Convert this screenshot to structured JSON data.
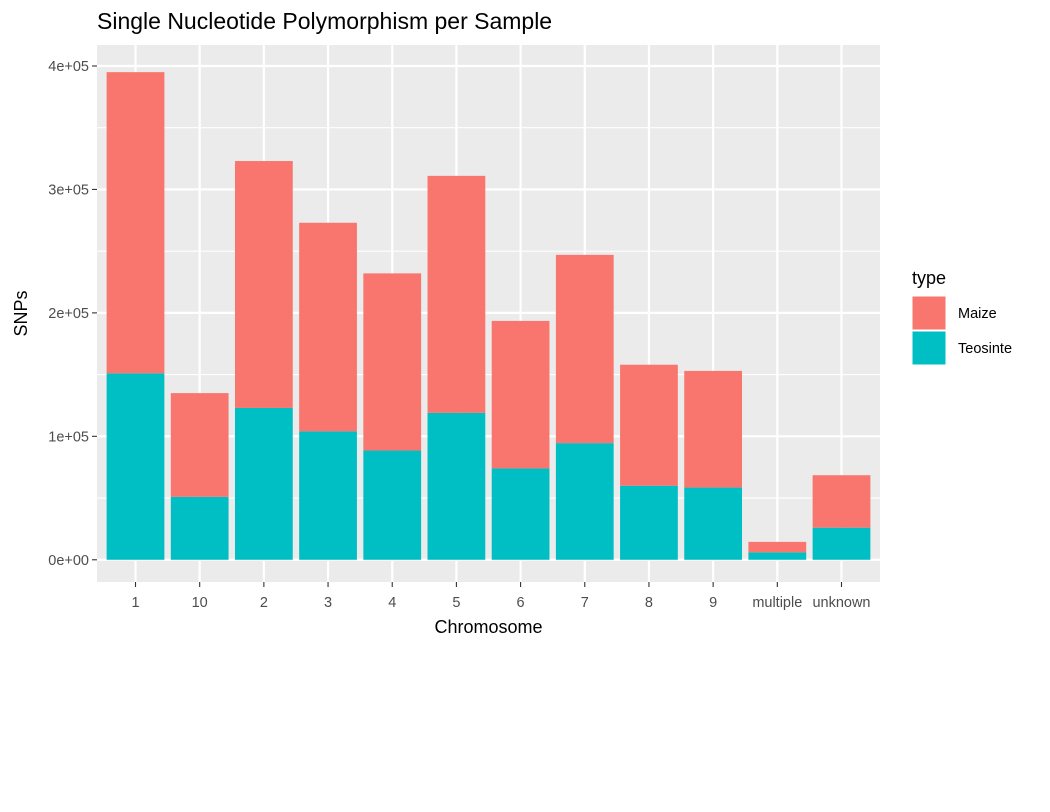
{
  "chart_data": {
    "type": "bar",
    "stacked": true,
    "title": "Single Nucleotide Polymorphism per Sample",
    "xlabel": "Chromosome",
    "ylabel": "SNPs",
    "categories": [
      "1",
      "10",
      "2",
      "3",
      "4",
      "5",
      "6",
      "7",
      "8",
      "9",
      "multiple",
      "unknown"
    ],
    "series": [
      {
        "name": "Teosinte",
        "color": "#00BFC4",
        "values": [
          151000,
          51000,
          123000,
          104000,
          88500,
          119000,
          74000,
          94500,
          60000,
          58500,
          6000,
          26000
        ]
      },
      {
        "name": "Maize",
        "color": "#F8766D",
        "values": [
          244000,
          84000,
          200000,
          169000,
          143500,
          192000,
          119500,
          152500,
          98000,
          94500,
          8500,
          42500
        ]
      }
    ],
    "ylim": [
      -18000,
      417000
    ],
    "yticks": [
      0,
      100000,
      200000,
      300000,
      400000
    ],
    "ytick_labels": [
      "0e+00",
      "1e+05",
      "2e+05",
      "3e+05",
      "4e+05"
    ],
    "grid": true,
    "background": "#EBEBEB",
    "legend": {
      "title": "type",
      "position": "right",
      "entries": [
        "Maize",
        "Teosinte"
      ]
    }
  }
}
